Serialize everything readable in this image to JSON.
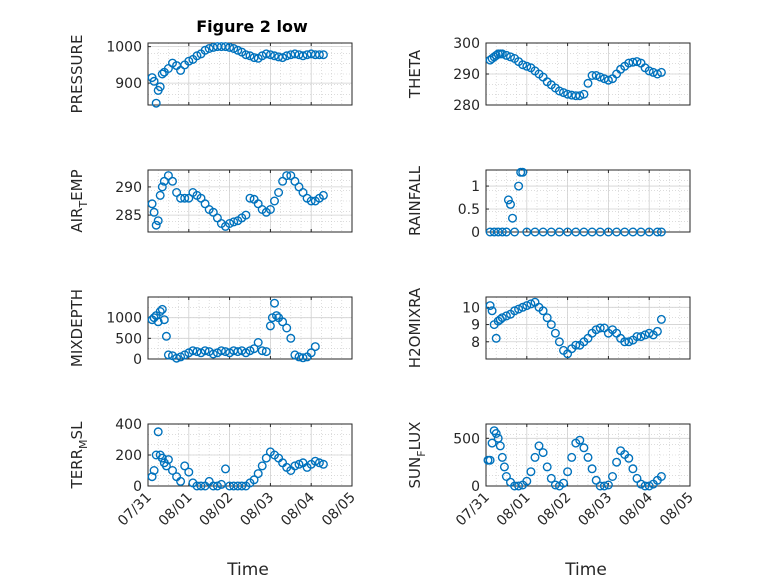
{
  "title": "Figure 2 low",
  "colors": {
    "series": "#0072BD",
    "frame": "#262626"
  },
  "chart_data": [
    {
      "type": "scatter",
      "ylabel": "PRESSURE",
      "xlabel": "",
      "xlim": [
        0,
        5
      ],
      "ylim": [
        840,
        1010
      ],
      "yticks": [
        900,
        1000
      ],
      "xtick_labels": [],
      "x": [
        0.1,
        0.15,
        0.2,
        0.25,
        0.3,
        0.35,
        0.4,
        0.5,
        0.6,
        0.7,
        0.8,
        0.9,
        1.0,
        1.1,
        1.2,
        1.3,
        1.4,
        1.5,
        1.6,
        1.7,
        1.8,
        1.9,
        2.0,
        2.1,
        2.2,
        2.3,
        2.4,
        2.5,
        2.6,
        2.7,
        2.8,
        2.9,
        3.0,
        3.1,
        3.2,
        3.3,
        3.4,
        3.5,
        3.6,
        3.7,
        3.8,
        3.9,
        4.0,
        4.1,
        4.2,
        4.3
      ],
      "y": [
        915,
        905,
        845,
        880,
        890,
        925,
        930,
        940,
        955,
        948,
        935,
        950,
        960,
        965,
        975,
        980,
        990,
        995,
        998,
        1000,
        1000,
        1000,
        998,
        995,
        990,
        985,
        978,
        975,
        970,
        968,
        975,
        980,
        978,
        975,
        972,
        970,
        975,
        978,
        980,
        978,
        975,
        978,
        980,
        978,
        978,
        978
      ]
    },
    {
      "type": "scatter",
      "ylabel": "THETA",
      "xlabel": "",
      "xlim": [
        0,
        5
      ],
      "ylim": [
        280,
        300
      ],
      "yticks": [
        280,
        290,
        300
      ],
      "xtick_labels": [],
      "x": [
        0.1,
        0.15,
        0.2,
        0.25,
        0.3,
        0.35,
        0.4,
        0.5,
        0.6,
        0.7,
        0.8,
        0.9,
        1.0,
        1.1,
        1.2,
        1.3,
        1.4,
        1.5,
        1.6,
        1.7,
        1.8,
        1.9,
        2.0,
        2.1,
        2.2,
        2.3,
        2.4,
        2.5,
        2.6,
        2.7,
        2.8,
        2.9,
        3.0,
        3.1,
        3.2,
        3.3,
        3.4,
        3.5,
        3.6,
        3.7,
        3.8,
        3.9,
        4.0,
        4.1,
        4.2,
        4.3
      ],
      "y": [
        294.5,
        295,
        295.5,
        296,
        296.5,
        296.5,
        296.5,
        296,
        295.5,
        295,
        294,
        293,
        292.5,
        292,
        291,
        290,
        289,
        287.5,
        286.5,
        285.5,
        284.5,
        284,
        283.5,
        283.2,
        283,
        283,
        283.5,
        287,
        289.5,
        289.5,
        289,
        288.5,
        288,
        288.5,
        290,
        291.5,
        292.5,
        293.5,
        293.8,
        294,
        293.5,
        292,
        291,
        290.5,
        290,
        290.5
      ]
    },
    {
      "type": "scatter",
      "ylabel": "AIR_TEMP",
      "xlabel": "",
      "xlim": [
        0,
        5
      ],
      "ylim": [
        282,
        293
      ],
      "yticks": [
        285,
        290
      ],
      "xtick_labels": [],
      "x": [
        0.1,
        0.15,
        0.2,
        0.25,
        0.3,
        0.35,
        0.4,
        0.5,
        0.6,
        0.7,
        0.8,
        0.9,
        1.0,
        1.1,
        1.2,
        1.3,
        1.4,
        1.5,
        1.6,
        1.7,
        1.8,
        1.9,
        2.0,
        2.1,
        2.2,
        2.3,
        2.4,
        2.5,
        2.6,
        2.7,
        2.8,
        2.9,
        3.0,
        3.1,
        3.2,
        3.3,
        3.4,
        3.5,
        3.6,
        3.7,
        3.8,
        3.9,
        4.0,
        4.1,
        4.2,
        4.3
      ],
      "y": [
        287,
        285.5,
        283.2,
        284,
        288.5,
        290,
        291,
        292,
        291,
        289,
        288,
        288,
        288,
        289,
        288.5,
        288,
        287,
        286,
        285.5,
        284.5,
        283.5,
        283,
        283.5,
        283.8,
        284,
        284.5,
        285,
        288,
        287.8,
        287,
        286,
        285.5,
        286,
        287.5,
        289,
        291,
        292,
        292,
        291,
        290,
        289,
        288,
        287.5,
        287.5,
        288,
        288.5
      ]
    },
    {
      "type": "scatter",
      "ylabel": "RAINFALL",
      "xlabel": "",
      "xlim": [
        0,
        5
      ],
      "ylim": [
        0,
        1.35
      ],
      "yticks": [
        0,
        0.5,
        1
      ],
      "ytick_labels": [
        "0",
        "0.5",
        "1"
      ],
      "xtick_labels": [],
      "x": [
        0.1,
        0.2,
        0.3,
        0.4,
        0.5,
        0.55,
        0.6,
        0.65,
        0.7,
        0.8,
        0.85,
        0.9,
        1.0,
        1.2,
        1.4,
        1.6,
        1.8,
        2.0,
        2.2,
        2.4,
        2.6,
        2.8,
        3.0,
        3.2,
        3.4,
        3.6,
        3.8,
        4.0,
        4.2,
        4.3
      ],
      "y": [
        0,
        0,
        0,
        0,
        0,
        0.7,
        0.6,
        0.3,
        0,
        1.0,
        1.3,
        1.3,
        0,
        0,
        0,
        0,
        0,
        0,
        0,
        0,
        0,
        0,
        0,
        0,
        0,
        0,
        0,
        0,
        0,
        0
      ]
    },
    {
      "type": "scatter",
      "ylabel": "MIXDEPTH",
      "xlabel": "",
      "xlim": [
        0,
        5
      ],
      "ylim": [
        0,
        1500
      ],
      "yticks": [
        0,
        500,
        1000
      ],
      "xtick_labels": [],
      "x": [
        0.1,
        0.15,
        0.2,
        0.25,
        0.3,
        0.35,
        0.4,
        0.45,
        0.5,
        0.6,
        0.7,
        0.8,
        0.9,
        1.0,
        1.1,
        1.2,
        1.3,
        1.4,
        1.5,
        1.6,
        1.7,
        1.8,
        1.9,
        2.0,
        2.1,
        2.2,
        2.3,
        2.4,
        2.5,
        2.6,
        2.7,
        2.8,
        2.9,
        3.0,
        3.05,
        3.1,
        3.15,
        3.2,
        3.3,
        3.4,
        3.5,
        3.6,
        3.7,
        3.8,
        3.9,
        4.0,
        4.1
      ],
      "y": [
        950,
        1000,
        1050,
        900,
        1150,
        1200,
        950,
        550,
        100,
        80,
        20,
        50,
        100,
        150,
        200,
        180,
        150,
        200,
        180,
        120,
        150,
        200,
        180,
        150,
        200,
        180,
        200,
        150,
        200,
        250,
        400,
        200,
        180,
        800,
        1000,
        1350,
        1050,
        1000,
        900,
        750,
        500,
        100,
        50,
        30,
        50,
        150,
        300
      ]
    },
    {
      "type": "scatter",
      "ylabel": "H2OMIXRA",
      "xlabel": "",
      "xlim": [
        0,
        5
      ],
      "ylim": [
        7,
        10.6
      ],
      "yticks": [
        8,
        9,
        10
      ],
      "xtick_labels": [],
      "x": [
        0.1,
        0.15,
        0.2,
        0.25,
        0.3,
        0.35,
        0.4,
        0.5,
        0.6,
        0.7,
        0.8,
        0.9,
        1.0,
        1.1,
        1.2,
        1.3,
        1.4,
        1.5,
        1.6,
        1.7,
        1.8,
        1.9,
        2.0,
        2.1,
        2.2,
        2.3,
        2.4,
        2.5,
        2.6,
        2.7,
        2.8,
        2.9,
        3.0,
        3.1,
        3.2,
        3.3,
        3.4,
        3.5,
        3.6,
        3.7,
        3.8,
        3.9,
        4.0,
        4.1,
        4.2,
        4.3
      ],
      "y": [
        10.1,
        9.8,
        9.0,
        8.2,
        9.2,
        9.3,
        9.4,
        9.5,
        9.6,
        9.8,
        9.9,
        10.0,
        10.1,
        10.2,
        10.3,
        10.0,
        9.8,
        9.4,
        9.0,
        8.5,
        8.0,
        7.5,
        7.3,
        7.6,
        7.8,
        7.8,
        8.0,
        8.2,
        8.5,
        8.7,
        8.8,
        8.8,
        8.5,
        8.7,
        8.5,
        8.2,
        8.0,
        8.0,
        8.1,
        8.3,
        8.3,
        8.4,
        8.5,
        8.4,
        8.6,
        9.3
      ]
    },
    {
      "type": "scatter",
      "ylabel": "TERR_MSL",
      "xlabel": "Time",
      "xlim": [
        0,
        5
      ],
      "ylim": [
        0,
        400
      ],
      "yticks": [
        0,
        200,
        400
      ],
      "xtick_labels": [
        "07/31",
        "08/01",
        "08/02",
        "08/03",
        "08/04",
        "08/05"
      ],
      "x": [
        0.1,
        0.15,
        0.2,
        0.25,
        0.3,
        0.35,
        0.4,
        0.45,
        0.5,
        0.6,
        0.7,
        0.8,
        0.9,
        1.0,
        1.1,
        1.2,
        1.3,
        1.4,
        1.5,
        1.6,
        1.7,
        1.8,
        1.9,
        2.0,
        2.1,
        2.2,
        2.3,
        2.4,
        2.5,
        2.6,
        2.7,
        2.8,
        2.9,
        3.0,
        3.1,
        3.2,
        3.3,
        3.4,
        3.5,
        3.6,
        3.7,
        3.8,
        3.9,
        4.0,
        4.1,
        4.2,
        4.3
      ],
      "y": [
        60,
        100,
        200,
        350,
        200,
        180,
        150,
        130,
        170,
        100,
        60,
        30,
        130,
        90,
        20,
        0,
        0,
        0,
        30,
        0,
        0,
        10,
        110,
        0,
        0,
        0,
        0,
        0,
        20,
        40,
        80,
        130,
        180,
        220,
        200,
        180,
        150,
        120,
        100,
        130,
        140,
        150,
        120,
        140,
        160,
        150,
        140
      ]
    },
    {
      "type": "scatter",
      "ylabel": "SUN_FLUX",
      "xlabel": "Time",
      "xlim": [
        0,
        5
      ],
      "ylim": [
        0,
        650
      ],
      "yticks": [
        0,
        500
      ],
      "xtick_labels": [
        "07/31",
        "08/01",
        "08/02",
        "08/03",
        "08/04",
        "08/05"
      ],
      "x": [
        0.05,
        0.1,
        0.15,
        0.2,
        0.25,
        0.3,
        0.35,
        0.4,
        0.45,
        0.5,
        0.6,
        0.7,
        0.8,
        0.9,
        1.0,
        1.1,
        1.2,
        1.3,
        1.4,
        1.5,
        1.6,
        1.7,
        1.8,
        1.9,
        2.0,
        2.1,
        2.2,
        2.3,
        2.4,
        2.5,
        2.6,
        2.7,
        2.8,
        2.9,
        3.0,
        3.1,
        3.2,
        3.3,
        3.4,
        3.5,
        3.6,
        3.7,
        3.8,
        3.9,
        4.0,
        4.1,
        4.2,
        4.3
      ],
      "y": [
        270,
        270,
        450,
        580,
        550,
        500,
        420,
        300,
        200,
        100,
        40,
        0,
        0,
        10,
        50,
        150,
        300,
        420,
        350,
        200,
        80,
        10,
        0,
        30,
        150,
        300,
        450,
        480,
        400,
        300,
        180,
        60,
        0,
        0,
        10,
        100,
        250,
        370,
        330,
        290,
        180,
        80,
        20,
        0,
        0,
        20,
        60,
        100
      ]
    }
  ]
}
